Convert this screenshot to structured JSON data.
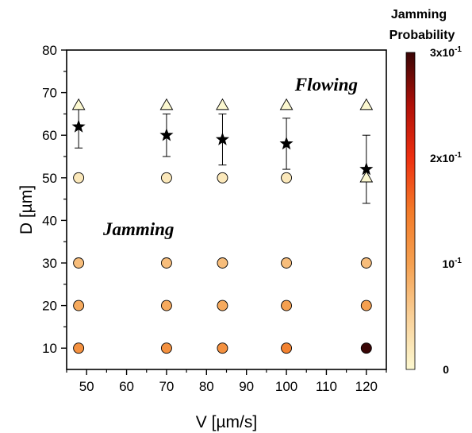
{
  "chart_data": {
    "type": "scatter",
    "title": "",
    "xlabel": "V [µm/s]",
    "ylabel": "D [µm]",
    "xlim": [
      45,
      125
    ],
    "ylim": [
      5,
      80
    ],
    "xticks": [
      50,
      60,
      70,
      80,
      90,
      100,
      110,
      120
    ],
    "yticks": [
      10,
      20,
      30,
      40,
      50,
      60,
      70,
      80
    ],
    "grid": false,
    "annotations": [
      {
        "text": "Flowing",
        "x": 110,
        "y": 72
      },
      {
        "text": "Jamming",
        "x": 63,
        "y": 38
      }
    ],
    "series": [
      {
        "marker": "circle",
        "color_by": "jamming_probability",
        "points": [
          {
            "x": 48,
            "y": 10,
            "p": 0.12
          },
          {
            "x": 48,
            "y": 20,
            "p": 0.09
          },
          {
            "x": 48,
            "y": 30,
            "p": 0.07
          },
          {
            "x": 48,
            "y": 50,
            "p": 0.02
          },
          {
            "x": 70,
            "y": 10,
            "p": 0.12
          },
          {
            "x": 70,
            "y": 20,
            "p": 0.09
          },
          {
            "x": 70,
            "y": 30,
            "p": 0.07
          },
          {
            "x": 70,
            "y": 50,
            "p": 0.02
          },
          {
            "x": 84,
            "y": 10,
            "p": 0.12
          },
          {
            "x": 84,
            "y": 20,
            "p": 0.09
          },
          {
            "x": 84,
            "y": 30,
            "p": 0.07
          },
          {
            "x": 84,
            "y": 50,
            "p": 0.02
          },
          {
            "x": 100,
            "y": 10,
            "p": 0.14
          },
          {
            "x": 100,
            "y": 20,
            "p": 0.1
          },
          {
            "x": 100,
            "y": 30,
            "p": 0.07
          },
          {
            "x": 100,
            "y": 50,
            "p": 0.02
          },
          {
            "x": 120,
            "y": 10,
            "p": 0.3
          },
          {
            "x": 120,
            "y": 20,
            "p": 0.1
          },
          {
            "x": 120,
            "y": 30,
            "p": 0.07
          }
        ]
      },
      {
        "marker": "triangle",
        "color": "#fcf8d0",
        "points": [
          {
            "x": 48,
            "y": 67
          },
          {
            "x": 70,
            "y": 67
          },
          {
            "x": 84,
            "y": 67
          },
          {
            "x": 100,
            "y": 67
          },
          {
            "x": 120,
            "y": 67
          },
          {
            "x": 120,
            "y": 50
          }
        ]
      },
      {
        "marker": "star",
        "color": "#000000",
        "points": [
          {
            "x": 48,
            "y": 62,
            "err": 5
          },
          {
            "x": 70,
            "y": 60,
            "err": 5
          },
          {
            "x": 84,
            "y": 59,
            "err": 6
          },
          {
            "x": 100,
            "y": 58,
            "err": 6
          },
          {
            "x": 120,
            "y": 52,
            "err": 8
          }
        ]
      }
    ],
    "colorbar": {
      "title_lines": [
        "Jamming",
        "Probability"
      ],
      "range": [
        0,
        0.3
      ],
      "ticks": [
        {
          "value": 0,
          "label": "0",
          "exponent": ""
        },
        {
          "value": 0.1,
          "label": "10",
          "exponent": "-1"
        },
        {
          "value": 0.2,
          "label": "2x10",
          "exponent": "-1"
        },
        {
          "value": 0.3,
          "label": "3x10",
          "exponent": "-1"
        }
      ],
      "colors": [
        "#fcf8d0",
        "#f9d098",
        "#f5a050",
        "#f37a28",
        "#ee3010",
        "#b01008",
        "#3a0606"
      ]
    }
  }
}
